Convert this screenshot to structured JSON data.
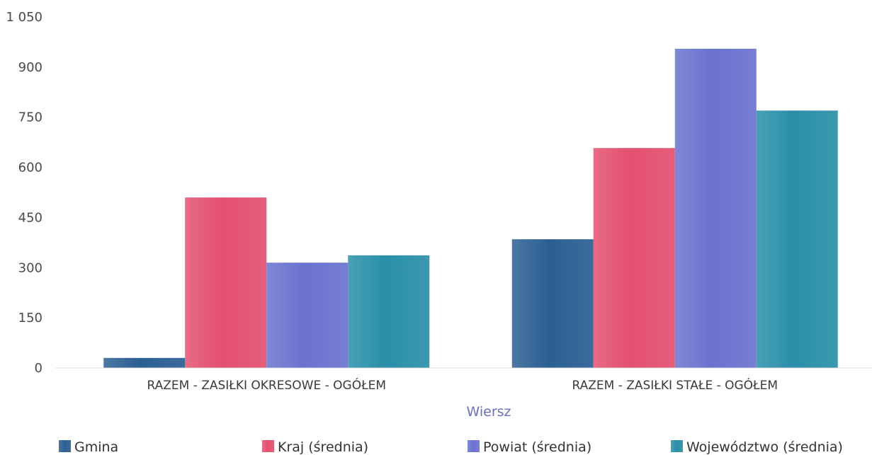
{
  "chart_data": {
    "type": "bar",
    "title": "",
    "xlabel": "Wiersz",
    "ylabel": "",
    "ylim": [
      0,
      1050
    ],
    "yticks": [
      0,
      150,
      300,
      450,
      600,
      750,
      900,
      1050
    ],
    "ytick_labels": [
      "0",
      "150",
      "300",
      "450",
      "600",
      "750",
      "900",
      "1 050"
    ],
    "categories": [
      "RAZEM - ZASIŁKI OKRESOWE - OGÓŁEM",
      "RAZEM - ZASIŁKI STAŁE - OGÓŁEM"
    ],
    "series": [
      {
        "name": "Gmina",
        "color": "#2b5f93",
        "values": [
          30,
          385
        ]
      },
      {
        "name": "Kraj (średnia)",
        "color": "#e3506f",
        "values": [
          510,
          658
        ]
      },
      {
        "name": "Powiat (średnia)",
        "color": "#6a72d0",
        "values": [
          315,
          955
        ]
      },
      {
        "name": "Województwo (średnia)",
        "color": "#2a8fa9",
        "values": [
          337,
          770
        ]
      }
    ],
    "legend_position": "bottom",
    "grid": false
  }
}
